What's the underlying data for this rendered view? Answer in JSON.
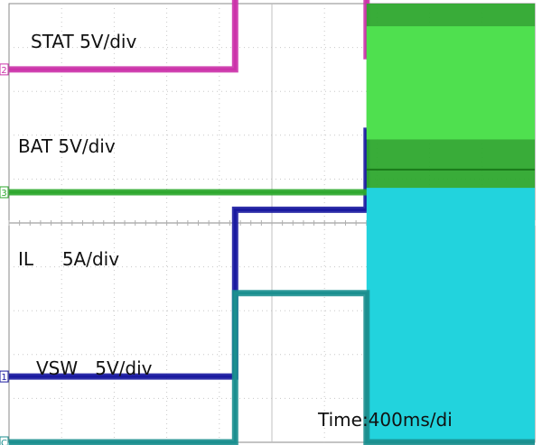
{
  "chart_data": {
    "type": "line",
    "x_unit": "div",
    "x_range": [
      0,
      10
    ],
    "time_label": "Time:400ms/di",
    "channel_markers": [
      "2",
      "1",
      "3",
      "C"
    ],
    "series": [
      {
        "name": "STAT",
        "label": "STAT 5V/div",
        "color": "#cc33aa",
        "x": [
          0,
          4.3,
          4.3,
          6.8,
          6.8,
          10
        ],
        "y": [
          3.5,
          3.5,
          7.8,
          7.8,
          3.8,
          3.8
        ]
      },
      {
        "name": "BAT",
        "label": "BAT 5V/div",
        "color": "#1a1aa0",
        "x": [
          0,
          4.3,
          4.3,
          6.8,
          6.8,
          10
        ],
        "y": [
          -3.5,
          -3.5,
          0.3,
          0.3,
          2.1,
          2.1
        ]
      },
      {
        "name": "IL",
        "label": "IL     5A/div",
        "color": "#2ea82e",
        "x": [
          0,
          6.8,
          6.8,
          10
        ],
        "y": [
          0.7,
          0.7,
          0.7,
          0.7
        ],
        "envelope": {
          "x": [
            6.8,
            10
          ],
          "top": 5.0,
          "bottom": 0.7
        }
      },
      {
        "name": "VSW",
        "label": "VSW   5V/div",
        "color": "#1b8f8f",
        "x": [
          0,
          4.3,
          4.3,
          6.8,
          6.8,
          10
        ],
        "y": [
          -5.0,
          -5.0,
          -1.6,
          -1.6,
          -5.0,
          -5.0
        ],
        "envelope": {
          "x": [
            6.8,
            10
          ],
          "top": 0.8,
          "bottom": -5.0
        }
      }
    ],
    "grid": true
  }
}
